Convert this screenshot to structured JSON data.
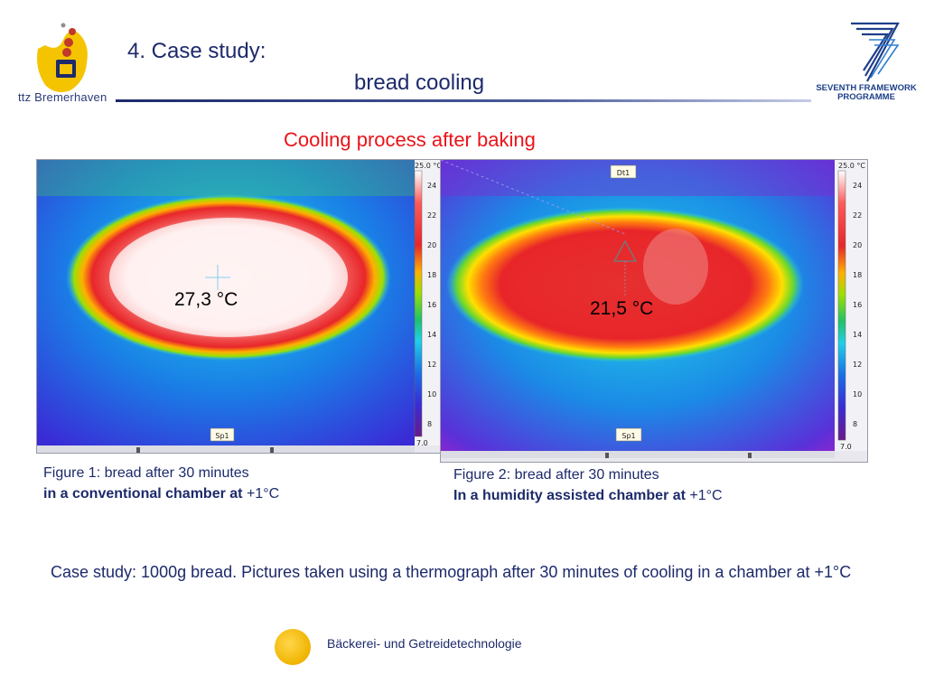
{
  "header": {
    "logo_left_text": "ttz Bremerhaven",
    "title_line_1": "4. Case study:",
    "title_line_2": "bread cooling",
    "logo_right_line_1": "SEVENTH FRAMEWORK",
    "logo_right_line_2": "PROGRAMME"
  },
  "subtitle": "Cooling process after baking",
  "thermograph_1": {
    "scale_max": "25.0 °C",
    "scale_min": "7.0",
    "scale_ticks": [
      "24",
      "22",
      "20",
      "18",
      "16",
      "14",
      "12",
      "10",
      "8"
    ],
    "spot_label": "Sp1",
    "temperature": "27,3 °C"
  },
  "thermograph_2": {
    "scale_max": "25.0 °C",
    "scale_min": "7.0",
    "scale_ticks": [
      "24",
      "22",
      "20",
      "18",
      "16",
      "14",
      "12",
      "10",
      "8"
    ],
    "spot_label": "Sp1",
    "delta_label": "Dt1",
    "temperature": "21,5 °C"
  },
  "figure_1": {
    "line_1": "Figure 1: bread after 30 minutes",
    "line_2_bold": "in a conventional chamber at",
    "line_2_rest": " +1°C"
  },
  "figure_2": {
    "line_1": "Figure 2: bread after 30 minutes",
    "line_2_bold": "In a humidity assisted chamber at",
    "line_2_rest": " +1°C"
  },
  "case_study_text": "Case study: 1000g bread. Pictures taken using a thermograph after 30 minutes of cooling in a chamber at +1°C",
  "footer": {
    "text": "Bäckerei- und Getreidetechnologie"
  },
  "colors": {
    "title": "#1d2a6b",
    "subtitle": "#e8141a",
    "footer_dot": "#f0b400"
  }
}
